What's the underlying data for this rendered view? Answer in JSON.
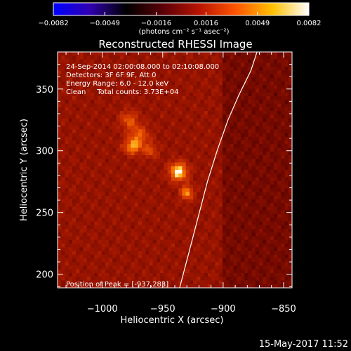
{
  "chart_data": {
    "type": "heatmap",
    "title": "Reconstructed RHESSI Image",
    "xlabel": "Heliocentric X (arcsec)",
    "ylabel": "Heliocentric Y (arcsec)",
    "xlim": [
      -1037,
      -843
    ],
    "ylim": [
      189,
      380
    ],
    "xticks": [
      -1000,
      -950,
      -900,
      -850
    ],
    "xtick_labels": [
      "−1000",
      "−950",
      "−900",
      "−850"
    ],
    "yticks": [
      200,
      250,
      300,
      350
    ],
    "ytick_labels": [
      "200",
      "250",
      "300",
      "350"
    ],
    "colorbar": {
      "range": [
        -0.0082,
        0.0082
      ],
      "ticks": [
        -0.0082,
        -0.0049,
        -0.0016,
        0.0016,
        0.0049,
        0.0082
      ],
      "tick_labels": [
        "−0.0082",
        "−0.0049",
        "−0.0016",
        "0.0016",
        "0.0049",
        "0.0082"
      ],
      "unit_label": "(photons cm⁻² s⁻¹ asec⁻²)",
      "colors": [
        "#0000ff",
        "#3000b0",
        "#000000",
        "#5a0008",
        "#b81400",
        "#ff5500",
        "#ffc000",
        "#ffffff"
      ]
    },
    "annotations": [
      "24-Sep-2014 02:00:08.000 to 02:10:08.000",
      "Detectors: 3F 6F 9F, Att 0",
      "Energy Range: 6.0 - 12.0 keV",
      "Clean     Total counts: 3.73E+04"
    ],
    "peak_label": "Position of Peak = [-937,283]",
    "peak": {
      "x": -937,
      "y": 283
    },
    "limb_curve": [
      [
        -936,
        189
      ],
      [
        -929,
        215
      ],
      [
        -921,
        245
      ],
      [
        -913,
        275
      ],
      [
        -905,
        300
      ],
      [
        -896,
        325
      ],
      [
        -887,
        345
      ],
      [
        -877,
        365
      ],
      [
        -872,
        380
      ]
    ],
    "sources": [
      {
        "x": -937,
        "y": 283,
        "amp": 1.0,
        "sx": 5,
        "sy": 5
      },
      {
        "x": -930,
        "y": 266,
        "amp": 0.7,
        "sx": 3.5,
        "sy": 4
      },
      {
        "x": -975,
        "y": 303,
        "amp": 0.65,
        "sx": 5,
        "sy": 4
      },
      {
        "x": -970,
        "y": 312,
        "amp": 0.5,
        "sx": 6,
        "sy": 6
      },
      {
        "x": -978,
        "y": 325,
        "amp": 0.45,
        "sx": 5,
        "sy": 5
      },
      {
        "x": -960,
        "y": 300,
        "amp": 0.4,
        "sx": 4,
        "sy": 4
      }
    ]
  },
  "footer": {
    "timestamp": "15-May-2017 11:52"
  }
}
